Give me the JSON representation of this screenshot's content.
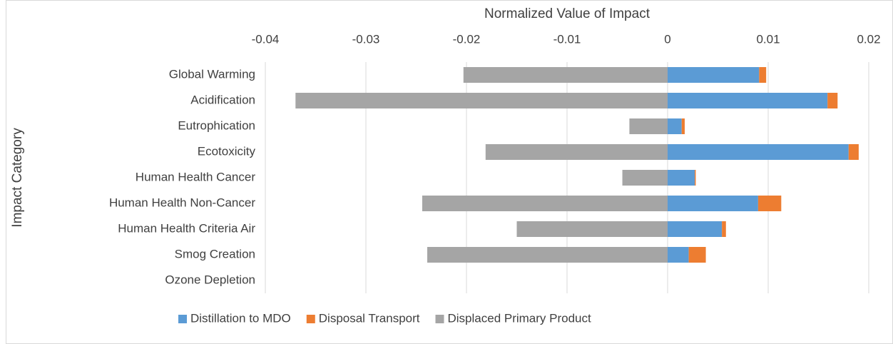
{
  "chart_data": {
    "type": "bar",
    "orientation": "horizontal",
    "stacked": true,
    "title": "Normalized Value of Impact",
    "y_label": "Impact Category",
    "categories": [
      "Global Warming",
      "Acidification",
      "Eutrophication",
      "Ecotoxicity",
      "Human Health Cancer",
      "Human Health Non-Cancer",
      "Human Health Criteria Air",
      "Smog Creation",
      "Ozone Depletion"
    ],
    "series": [
      {
        "name": "Distillation to MDO",
        "color": "#5b9bd5",
        "values": [
          0.0091,
          0.0159,
          0.0014,
          0.018,
          0.0027,
          0.009,
          0.0054,
          0.0021,
          0
        ]
      },
      {
        "name": "Disposal Transport",
        "color": "#ed7d31",
        "values": [
          0.0007,
          0.001,
          0.0003,
          0.001,
          0.0001,
          0.0023,
          0.0004,
          0.0017,
          0
        ]
      },
      {
        "name": "Displaced Primary Product",
        "color": "#a5a5a5",
        "values": [
          -0.0203,
          -0.037,
          -0.0038,
          -0.0181,
          -0.0045,
          -0.0244,
          -0.015,
          -0.0239,
          0
        ]
      }
    ],
    "xlim": [
      -0.04,
      0.02
    ],
    "xticks": [
      -0.04,
      -0.03,
      -0.02,
      -0.01,
      0,
      0.01,
      0.02
    ],
    "grid": true,
    "legend": "bottom"
  }
}
